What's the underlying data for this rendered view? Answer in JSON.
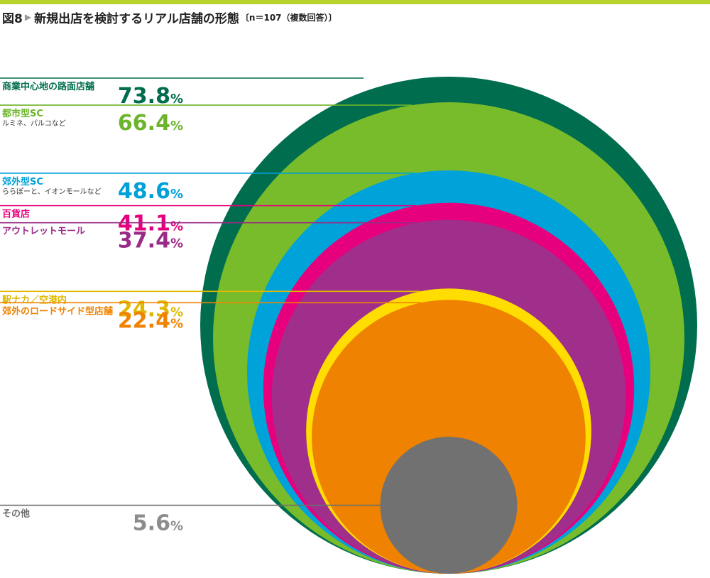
{
  "header": {
    "figure_label": "図8",
    "title": "新規出店を検討するリアル店舗の形態",
    "note": "〔n＝107（複数回答）〕"
  },
  "chart_data": {
    "type": "nested-circle",
    "title": "新規出店を検討するリアル店舗の形態",
    "n": 107,
    "unit": "%",
    "items": [
      {
        "name": "商業中心地の路面店舗",
        "sub": "",
        "value": 73.8,
        "color": "#006d4e",
        "label_color": "#006d4e",
        "value_color": "#006d4e"
      },
      {
        "name": "都市型SC",
        "sub": "ルミネ、パルコなど",
        "value": 66.4,
        "color": "#78bc2b",
        "label_color": "#6cb42a",
        "value_color": "#6cb42a"
      },
      {
        "name": "郊外型SC",
        "sub": "ららぽーと、イオンモールなど",
        "value": 48.6,
        "color": "#00a3d9",
        "label_color": "#00a0d8",
        "value_color": "#00a0d8"
      },
      {
        "name": "百貨店",
        "sub": "",
        "value": 41.1,
        "color": "#e6007e",
        "label_color": "#e6007e",
        "value_color": "#e6007e"
      },
      {
        "name": "アウトレットモール",
        "sub": "",
        "value": 37.4,
        "color": "#a02f8c",
        "label_color": "#9a2a87",
        "value_color": "#9a2a87"
      },
      {
        "name": "駅ナカ／空港内",
        "sub": "",
        "value": 24.3,
        "color": "#ffdd00",
        "label_color": "#e0b800",
        "value_color": "#e0b800"
      },
      {
        "name": "郊外のロードサイド型店舗",
        "sub": "",
        "value": 22.4,
        "color": "#ef8200",
        "label_color": "#ef8200",
        "value_color": "#ef8200"
      },
      {
        "name": "その他",
        "sub": "",
        "value": 5.6,
        "color": "#727171",
        "label_color": "#6f6f6f",
        "value_color": "#8c8c8c"
      }
    ]
  }
}
